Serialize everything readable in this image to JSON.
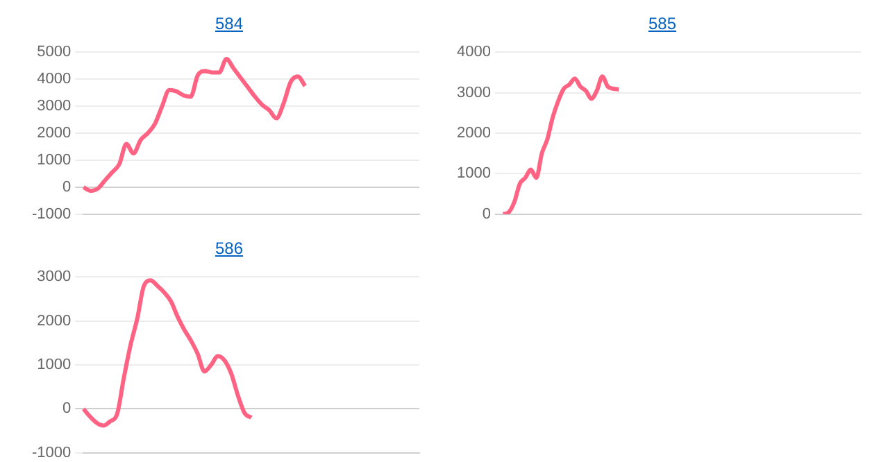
{
  "chart_data": [
    {
      "type": "line",
      "title": "584",
      "categories": [
        null,
        null,
        null,
        null,
        null,
        null,
        null,
        null,
        null,
        null,
        null,
        null,
        null,
        null,
        null,
        null,
        null,
        null,
        null,
        null,
        null,
        null,
        null,
        null,
        null,
        null,
        null,
        null,
        null,
        null,
        null,
        null,
        null,
        null,
        null,
        null,
        null,
        null,
        null,
        null,
        null,
        null,
        null,
        null,
        null,
        null,
        null,
        null
      ],
      "series": [
        {
          "color": "#ff6384",
          "values": [
            0,
            -130,
            -50,
            250,
            550,
            850,
            1600,
            1250,
            1750,
            2000,
            2350,
            3000,
            3600,
            3550,
            3400,
            3350,
            4150,
            4300,
            4250,
            4250,
            4750,
            4400,
            4050,
            3700,
            3350,
            3050,
            2850,
            2550,
            3100,
            3900,
            4100,
            3750,
            null,
            null,
            null,
            null,
            null,
            null,
            null,
            null,
            null,
            null,
            null,
            null,
            null,
            null,
            null,
            null
          ]
        }
      ],
      "ylim": [
        -1000,
        5000
      ],
      "yticks": [
        -1000,
        0,
        1000,
        2000,
        3000,
        4000,
        5000
      ],
      "grid": "y",
      "tick_labels": "y"
    },
    {
      "type": "line",
      "title": "585",
      "categories": [
        null,
        null,
        null,
        null,
        null,
        null,
        null,
        null,
        null,
        null,
        null,
        null,
        null,
        null,
        null,
        null,
        null,
        null,
        null,
        null,
        null,
        null,
        null,
        null,
        null,
        null,
        null,
        null,
        null,
        null,
        null,
        null,
        null,
        null,
        null,
        null,
        null,
        null,
        null,
        null,
        null,
        null,
        null,
        null,
        null,
        null,
        null,
        null,
        null,
        null,
        null,
        null,
        null,
        null,
        null,
        null,
        null,
        null,
        null,
        null,
        null,
        null,
        null,
        null,
        null,
        null
      ],
      "series": [
        {
          "color": "#ff6384",
          "values": [
            0,
            50,
            300,
            750,
            900,
            1100,
            900,
            1500,
            1850,
            2400,
            2800,
            3100,
            3200,
            3350,
            3150,
            3050,
            2850,
            3050,
            3400,
            3150,
            3100,
            3080,
            null,
            null,
            null,
            null,
            null,
            null,
            null,
            null,
            null,
            null,
            null,
            null,
            null,
            null,
            null,
            null,
            null,
            null,
            null,
            null,
            null,
            null,
            null,
            null,
            null,
            null,
            null,
            null,
            null,
            null,
            null,
            null,
            null,
            null,
            null,
            null,
            null,
            null,
            null,
            null,
            null,
            null,
            null,
            null
          ]
        }
      ],
      "ylim": [
        0,
        4000
      ],
      "yticks": [
        0,
        1000,
        2000,
        3000,
        4000
      ],
      "grid": "y",
      "tick_labels": "y"
    },
    {
      "type": "line",
      "title": "586",
      "categories": [
        null,
        null,
        null,
        null,
        null,
        null,
        null,
        null,
        null,
        null,
        null,
        null,
        null,
        null,
        null,
        null,
        null,
        null,
        null,
        null,
        null,
        null,
        null,
        null,
        null,
        null,
        null,
        null,
        null,
        null,
        null,
        null,
        null,
        null,
        null,
        null,
        null,
        null,
        null,
        null,
        null,
        null,
        null,
        null,
        null,
        null,
        null,
        null,
        null,
        null,
        null
      ],
      "series": [
        {
          "color": "#ff6384",
          "values": [
            0,
            -180,
            -320,
            -380,
            -280,
            -120,
            700,
            1450,
            2050,
            2800,
            2920,
            2800,
            2650,
            2450,
            2100,
            1800,
            1550,
            1250,
            850,
            1000,
            1200,
            1100,
            800,
            300,
            -100,
            -200,
            null,
            null,
            null,
            null,
            null,
            null,
            null,
            null,
            null,
            null,
            null,
            null,
            null,
            null,
            null,
            null,
            null,
            null,
            null,
            null,
            null,
            null,
            null,
            null,
            null
          ]
        }
      ],
      "ylim": [
        -1000,
        3000
      ],
      "yticks": [
        -1000,
        0,
        1000,
        2000,
        3000
      ],
      "grid": "y",
      "tick_labels": "y"
    }
  ]
}
